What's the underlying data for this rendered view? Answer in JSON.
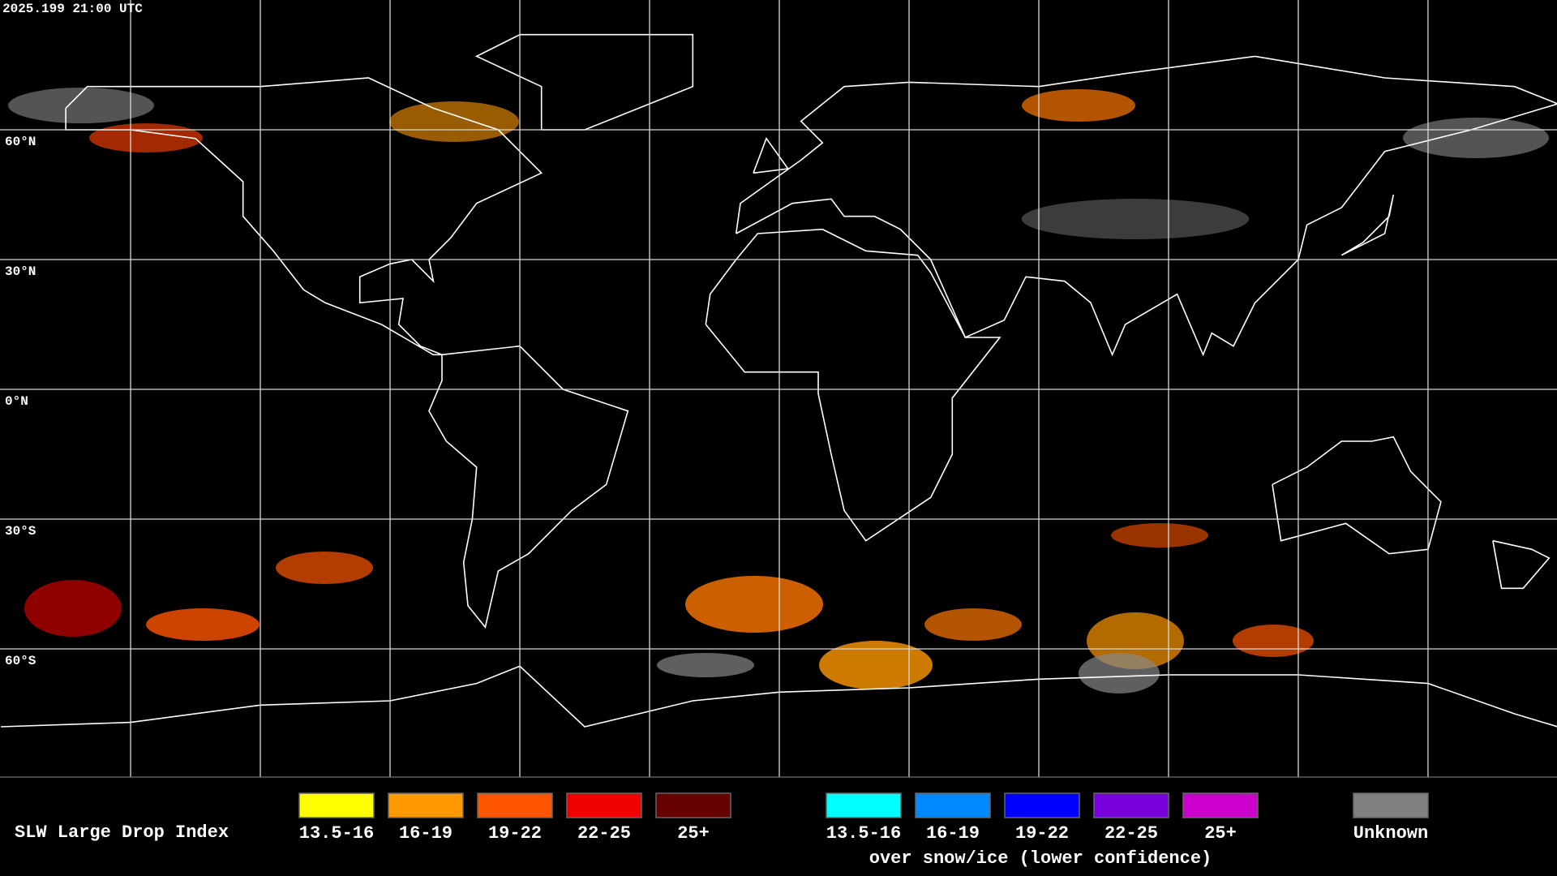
{
  "header": {
    "timestamp": "2025.199 21:00 UTC"
  },
  "lat_labels": [
    "60°N",
    "30°N",
    "0°N",
    "30°S",
    "60°S"
  ],
  "legend": {
    "title": "SLW Large Drop Index",
    "items": [
      {
        "label": "13.5-16",
        "color": "#ffff00"
      },
      {
        "label": "16-19",
        "color": "#ff9900"
      },
      {
        "label": "19-22",
        "color": "#ff5500"
      },
      {
        "label": "22-25",
        "color": "#ee0000"
      },
      {
        "label": "25+",
        "color": "#660000"
      }
    ],
    "snow_ice_items": [
      {
        "label": "13.5-16",
        "color": "#00ffff"
      },
      {
        "label": "16-19",
        "color": "#0088ff"
      },
      {
        "label": "19-22",
        "color": "#0000ff"
      },
      {
        "label": "22-25",
        "color": "#7700dd"
      },
      {
        "label": "25+",
        "color": "#cc00cc"
      }
    ],
    "snow_ice_note": "over snow/ice (lower confidence)",
    "unknown": {
      "label": "Unknown",
      "color": "#808080"
    }
  }
}
